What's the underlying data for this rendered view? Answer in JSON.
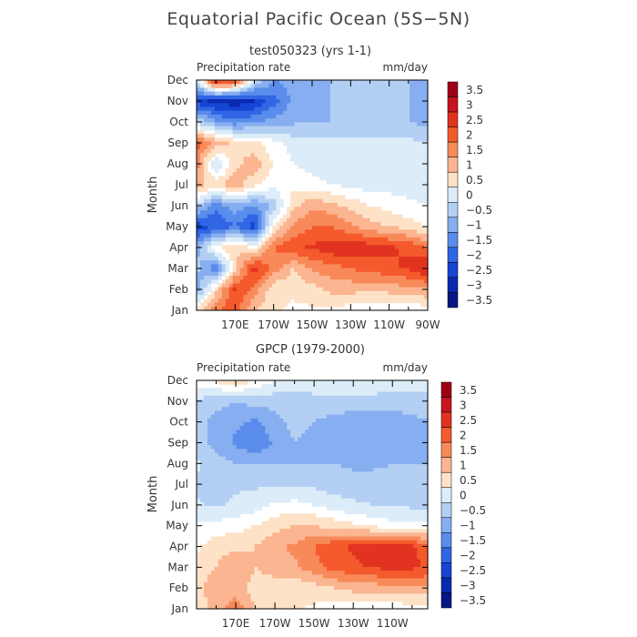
{
  "title": "Equatorial Pacific Ocean (5S−5N)",
  "chart_data": [
    {
      "type": "heatmap",
      "title": "test050323 (yrs 1-1)",
      "variable": "Precipitation rate",
      "units": "mm/day",
      "ylabel": "Month",
      "x_ticks": [
        "170E",
        "170W",
        "150W",
        "130W",
        "110W",
        "90W"
      ],
      "x_tick_lon": [
        170,
        190,
        210,
        230,
        250,
        270
      ],
      "xlim": [
        150,
        270
      ],
      "y_ticks": [
        "Jan",
        "Feb",
        "Mar",
        "Apr",
        "May",
        "Jun",
        "Jul",
        "Aug",
        "Sep",
        "Oct",
        "Nov",
        "Dec"
      ],
      "colorbar": [
        "3.5",
        "3",
        "2.5",
        "2",
        "1.5",
        "1",
        "0.5",
        "0",
        "−0.5",
        "−1",
        "−1.5",
        "−2",
        "−2.5",
        "−3",
        "−3.5"
      ],
      "anomaly_grid_lon": [
        150,
        160,
        170,
        180,
        190,
        200,
        210,
        220,
        230,
        240,
        250,
        260,
        270
      ],
      "anomaly_grid_mm_day": [
        [
          0.8,
          2.0,
          2.2,
          1.0,
          0.6,
          0.4,
          0.4,
          0.3,
          0.2,
          0.1,
          0.1,
          0.1,
          0.2
        ],
        [
          -1.5,
          0.8,
          2.6,
          1.8,
          0.6,
          0.6,
          0.8,
          1.2,
          1.2,
          1.1,
          1.2,
          1.3,
          1.5
        ],
        [
          -0.8,
          -2.0,
          0.8,
          2.8,
          1.8,
          1.0,
          1.6,
          1.8,
          2.0,
          2.2,
          2.4,
          2.6,
          3.0
        ],
        [
          -1.2,
          0.4,
          1.0,
          0.4,
          2.0,
          2.4,
          2.6,
          2.8,
          3.0,
          2.8,
          2.6,
          2.4,
          2.0
        ],
        [
          -2.8,
          -2.5,
          -2.0,
          -2.8,
          0.6,
          1.6,
          2.0,
          2.0,
          1.6,
          1.2,
          1.0,
          0.8,
          0.4
        ],
        [
          -0.6,
          -1.8,
          -1.2,
          -1.6,
          -0.8,
          0.8,
          1.4,
          1.2,
          0.8,
          0.5,
          0.3,
          0.1,
          0.0
        ],
        [
          1.2,
          0.8,
          1.4,
          0.6,
          0.2,
          0.4,
          0.2,
          0.0,
          -0.1,
          -0.2,
          -0.2,
          -0.2,
          -0.2
        ],
        [
          1.8,
          -0.6,
          0.8,
          1.4,
          0.4,
          0.0,
          -0.2,
          -0.3,
          -0.4,
          -0.3,
          -0.4,
          -0.4,
          -0.4
        ],
        [
          2.2,
          1.4,
          0.8,
          0.6,
          0.2,
          -0.2,
          -0.4,
          -0.3,
          -0.3,
          -0.4,
          -0.4,
          -0.4,
          -0.4
        ],
        [
          -0.6,
          -1.4,
          -1.8,
          -1.6,
          -1.3,
          -1.1,
          -1.0,
          -1.0,
          -1.0,
          -1.0,
          -1.0,
          -1.0,
          -1.2
        ],
        [
          -2.8,
          -3.2,
          -3.4,
          -3.0,
          -2.2,
          -1.4,
          -1.2,
          -1.0,
          -1.0,
          -1.0,
          -1.0,
          -1.0,
          -1.4
        ],
        [
          -0.4,
          3.2,
          2.6,
          -0.2,
          -1.6,
          -1.2,
          -1.0,
          -1.0,
          -1.0,
          -1.0,
          -1.0,
          -1.0,
          -1.2
        ]
      ]
    },
    {
      "type": "heatmap",
      "title": "GPCP (1979-2000)",
      "variable": "Precipitation rate",
      "units": "mm/day",
      "ylabel": "Month",
      "x_ticks": [
        "170E",
        "170W",
        "150W",
        "130W",
        "110W"
      ],
      "x_tick_lon": [
        170,
        190,
        210,
        230,
        250
      ],
      "xlim": [
        150,
        268
      ],
      "y_ticks": [
        "Jan",
        "Feb",
        "Mar",
        "Apr",
        "May",
        "Jun",
        "Jul",
        "Aug",
        "Sep",
        "Oct",
        "Nov",
        "Dec"
      ],
      "colorbar": [
        "3.5",
        "3",
        "2.5",
        "2",
        "1.5",
        "1",
        "0.5",
        "0",
        "−0.5",
        "−1",
        "−1.5",
        "−2",
        "−2.5",
        "−3",
        "−3.5"
      ],
      "anomaly_grid_lon": [
        150,
        160,
        170,
        180,
        190,
        200,
        210,
        220,
        230,
        240,
        250,
        260,
        270
      ],
      "anomaly_grid_mm_day": [
        [
          0.6,
          1.2,
          1.8,
          1.0,
          0.8,
          0.6,
          0.4,
          0.2,
          0.1,
          0.1,
          0.1,
          0.2,
          0.3
        ],
        [
          0.8,
          1.4,
          1.2,
          0.8,
          0.8,
          0.6,
          0.8,
          1.0,
          1.2,
          1.2,
          1.4,
          1.4,
          1.4
        ],
        [
          0.6,
          1.0,
          1.4,
          1.0,
          1.2,
          1.4,
          1.8,
          2.2,
          2.4,
          2.6,
          2.6,
          2.6,
          2.4
        ],
        [
          0.4,
          0.8,
          0.9,
          1.0,
          1.4,
          1.6,
          2.0,
          2.4,
          2.6,
          2.8,
          2.8,
          2.6,
          2.2
        ],
        [
          0.1,
          0.2,
          0.3,
          0.5,
          0.8,
          1.0,
          1.0,
          0.8,
          0.6,
          0.4,
          0.2,
          0.1,
          0.1
        ],
        [
          -0.4,
          -0.6,
          -0.4,
          -0.2,
          0.1,
          0.2,
          0.0,
          -0.2,
          -0.4,
          -0.5,
          -0.6,
          -0.6,
          -0.6
        ],
        [
          -0.6,
          -0.8,
          -0.6,
          -0.6,
          -0.6,
          -0.6,
          -0.6,
          -0.8,
          -0.8,
          -0.8,
          -0.8,
          -0.8,
          -0.8
        ],
        [
          -0.4,
          -0.8,
          -1.0,
          -1.0,
          -1.0,
          -1.0,
          -1.0,
          -1.0,
          -1.1,
          -1.1,
          -1.0,
          -1.0,
          -1.0
        ],
        [
          -0.8,
          -1.2,
          -1.6,
          -2.0,
          -1.4,
          -1.0,
          -1.2,
          -1.4,
          -1.4,
          -1.4,
          -1.4,
          -1.2,
          -1.0
        ],
        [
          -0.8,
          -1.2,
          -1.4,
          -1.6,
          -1.2,
          -0.8,
          -1.0,
          -1.2,
          -1.4,
          -1.4,
          -1.4,
          -1.2,
          -1.0
        ],
        [
          -0.6,
          -0.8,
          -1.0,
          -0.8,
          -0.8,
          -0.8,
          -0.6,
          -0.6,
          -0.6,
          -0.6,
          -0.6,
          -0.6,
          -0.6
        ],
        [
          0.2,
          0.6,
          1.0,
          0.4,
          0.0,
          -0.2,
          -0.3,
          -0.3,
          -0.3,
          -0.3,
          -0.4,
          -0.4,
          -0.4
        ]
      ]
    }
  ]
}
